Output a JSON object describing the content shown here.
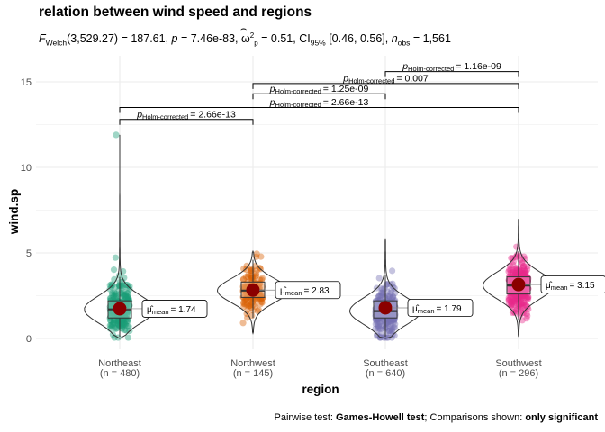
{
  "title": "relation between wind speed and regions",
  "subtitle": {
    "f_label": "F",
    "f_sub": "Welch",
    "f_value": "(3,529.27) = 187.61, ",
    "p_label": "p",
    "p_value": " = 7.46e-83, ",
    "omega_label": "ω",
    "omega_sup": "2",
    "omega_sub": "p",
    "omega_value": " = 0.51, CI",
    "ci_sub": "95%",
    "ci_value": " [0.46, 0.56], ",
    "n_label": "n",
    "n_sub": "obs",
    "n_value": " = 1,561"
  },
  "caption": {
    "prefix": "Pairwise test: ",
    "test": "Games-Howell test",
    "middle": "; Comparisons shown: ",
    "shown": "only significant"
  },
  "colors": {
    "Northeast": "#1B9E77",
    "Northwest": "#D95F02",
    "Southeast": "#7570B3",
    "Southwest": "#E7298A",
    "mean_point": "#8B0000",
    "grid": "#EBEBEB"
  },
  "chart_data": {
    "type": "violin-box-jitter",
    "xlabel": "region",
    "ylabel": "wind.sp",
    "ylim": [
      0,
      15
    ],
    "yticks": [
      0,
      5,
      10,
      15
    ],
    "grid": true,
    "categories": [
      "Northeast",
      "Northwest",
      "Southeast",
      "Southwest"
    ],
    "category_labels": [
      "Northeast\n(n = 480)",
      "Northwest\n(n = 145)",
      "Southeast\n(n = 640)",
      "Southwest\n(n = 296)"
    ],
    "n": [
      480,
      145,
      640,
      296
    ],
    "means": [
      1.74,
      2.83,
      1.79,
      3.15
    ],
    "mean_labels": [
      "= 1.74",
      "= 2.83",
      "= 1.79",
      "= 3.15"
    ],
    "mean_symbol": "μ̂",
    "mean_sub": "mean",
    "box": [
      {
        "q1": 1.2,
        "median": 1.7,
        "q3": 2.2,
        "whisker_low": 0.1,
        "whisker_high": 3.6
      },
      {
        "q1": 2.4,
        "median": 2.8,
        "q3": 3.3,
        "whisker_low": 1.2,
        "whisker_high": 4.6
      },
      {
        "q1": 1.2,
        "median": 1.6,
        "q3": 2.2,
        "whisker_low": 0.1,
        "whisker_high": 3.7
      },
      {
        "q1": 2.6,
        "median": 3.1,
        "q3": 3.6,
        "whisker_low": 1.1,
        "whisker_high": 5.1
      }
    ],
    "violin_range": [
      [
        0.0,
        11.9
      ],
      [
        0.3,
        5.1
      ],
      [
        0.0,
        5.8
      ],
      [
        0.1,
        7.0
      ]
    ],
    "comparisons": [
      {
        "group1": "Northeast",
        "group2": "Northwest",
        "y": 12.8,
        "p_label": "p",
        "p_sub": "Holm-corrected",
        "p_value": "= 2.66e-13"
      },
      {
        "group1": "Northeast",
        "group2": "Southwest",
        "y": 13.5,
        "p_label": "p",
        "p_sub": "Holm-corrected",
        "p_value": "= 2.66e-13"
      },
      {
        "group1": "Northwest",
        "group2": "Southeast",
        "y": 14.3,
        "p_label": "p",
        "p_sub": "Holm-corrected",
        "p_value": "= 1.25e-09"
      },
      {
        "group1": "Northwest",
        "group2": "Southwest",
        "y": 14.9,
        "p_label": "p",
        "p_sub": "Holm-corrected",
        "p_value": "= 0.007"
      },
      {
        "group1": "Southeast",
        "group2": "Southwest",
        "y": 15.6,
        "p_label": "p",
        "p_sub": "Holm-corrected",
        "p_value": "= 1.16e-09"
      }
    ]
  }
}
